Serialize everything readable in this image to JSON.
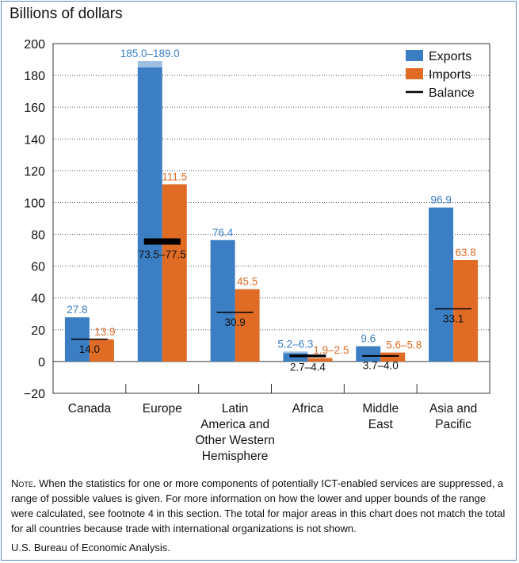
{
  "chart_data": {
    "type": "bar",
    "ylabel": "Billions of dollars",
    "ylim": [
      -20,
      200
    ],
    "yticks": [
      "−20",
      "0",
      "20",
      "40",
      "60",
      "80",
      "100",
      "120",
      "140",
      "160",
      "180",
      "200"
    ],
    "grid": true,
    "legend_position": "top-right",
    "categories": [
      [
        "Canada"
      ],
      [
        "Europe"
      ],
      [
        "Latin",
        "America and",
        "Other Western",
        "Hemisphere"
      ],
      [
        "Africa"
      ],
      [
        "Middle",
        "East"
      ],
      [
        "Asia and",
        "Pacific"
      ]
    ],
    "series": [
      {
        "name": "Exports",
        "color": "#3b7ec4",
        "values": [
          {
            "low": 27.8,
            "high": 27.8,
            "label": "27.8"
          },
          {
            "low": 185.0,
            "high": 189.0,
            "label": "185.0–189.0"
          },
          {
            "low": 76.4,
            "high": 76.4,
            "label": "76.4"
          },
          {
            "low": 5.2,
            "high": 6.3,
            "label": "5.2–6.3"
          },
          {
            "low": 9.6,
            "high": 9.6,
            "label": "9.6"
          },
          {
            "low": 96.9,
            "high": 96.9,
            "label": "96.9"
          }
        ]
      },
      {
        "name": "Imports",
        "color": "#e06b24",
        "values": [
          {
            "low": 13.9,
            "high": 13.9,
            "label": "13.9"
          },
          {
            "low": 111.5,
            "high": 111.5,
            "label": "111.5"
          },
          {
            "low": 45.5,
            "high": 45.5,
            "label": "45.5"
          },
          {
            "low": 1.9,
            "high": 2.5,
            "label": "1.9–2.5"
          },
          {
            "low": 5.6,
            "high": 5.8,
            "label": "5.6–5.8"
          },
          {
            "low": 63.8,
            "high": 63.8,
            "label": "63.8"
          }
        ]
      },
      {
        "name": "Balance",
        "color": "#000000",
        "values": [
          {
            "low": 14.0,
            "high": 14.0,
            "label": "14.0"
          },
          {
            "low": 73.5,
            "high": 77.5,
            "label": "73.5–77.5"
          },
          {
            "low": 30.9,
            "high": 30.9,
            "label": "30.9"
          },
          {
            "low": 2.7,
            "high": 4.4,
            "label": "2.7–4.4"
          },
          {
            "low": 3.7,
            "high": 4.0,
            "label": "3.7–4.0"
          },
          {
            "low": 33.1,
            "high": 33.1,
            "label": "33.1"
          }
        ]
      }
    ],
    "range_fill_colors": {
      "Exports": "#9dbfe2",
      "Imports": "#f0b48e"
    }
  },
  "note": {
    "lead": "Note.",
    "text": " When the statistics for one or more components of potentially ICT-enabled services are suppressed, a range of possible values is given. For more information on how the lower and upper bounds of the range were calculated, see footnote 4 in this section. The total for major areas in this chart does not match the total for all countries because trade with international organizations is not shown."
  },
  "source": "U.S. Bureau of Economic Analysis."
}
